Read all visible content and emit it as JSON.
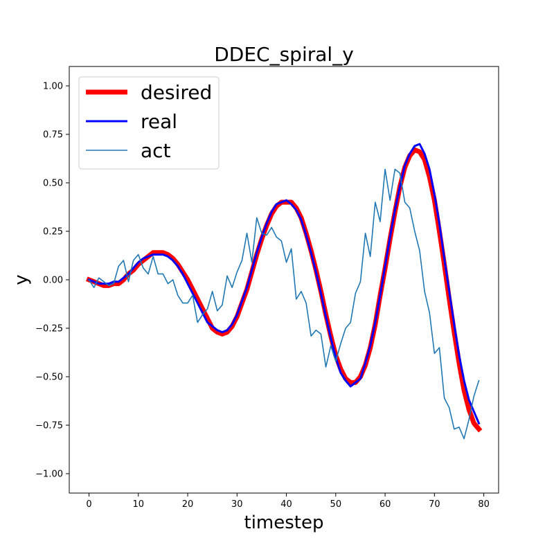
{
  "chart_data": {
    "type": "line",
    "title": "DDEC_spiral_y",
    "xlabel": "timestep",
    "ylabel": "y",
    "xlim": [
      -4,
      83
    ],
    "ylim": [
      -1.1,
      1.1
    ],
    "xticks": [
      0,
      10,
      20,
      30,
      40,
      50,
      60,
      70,
      80
    ],
    "yticks": [
      -1.0,
      -0.75,
      -0.5,
      -0.25,
      0.0,
      0.25,
      0.5,
      0.75,
      1.0
    ],
    "ytick_labels": [
      "−1.00",
      "−0.75",
      "−0.50",
      "−0.25",
      "0.00",
      "0.25",
      "0.50",
      "0.75",
      "1.00"
    ],
    "grid": false,
    "legend_position": "top-left",
    "series": [
      {
        "name": "desired",
        "color": "#ff0000",
        "x": [
          0,
          1,
          2,
          3,
          4,
          5,
          6,
          7,
          8,
          9,
          10,
          11,
          12,
          13,
          14,
          15,
          16,
          17,
          18,
          19,
          20,
          21,
          22,
          23,
          24,
          25,
          26,
          27,
          28,
          29,
          30,
          31,
          32,
          33,
          34,
          35,
          36,
          37,
          38,
          39,
          40,
          41,
          42,
          43,
          44,
          45,
          46,
          47,
          48,
          49,
          50,
          51,
          52,
          53,
          54,
          55,
          56,
          57,
          58,
          59,
          60,
          61,
          62,
          63,
          64,
          65,
          66,
          67,
          68,
          69,
          70,
          71,
          72,
          73,
          74,
          75,
          76,
          77,
          78,
          79
        ],
        "values": [
          0.0,
          -0.01,
          -0.02,
          -0.03,
          -0.03,
          -0.02,
          -0.02,
          0.0,
          0.03,
          0.05,
          0.08,
          0.1,
          0.12,
          0.14,
          0.14,
          0.14,
          0.13,
          0.11,
          0.08,
          0.04,
          0.0,
          -0.05,
          -0.1,
          -0.15,
          -0.2,
          -0.25,
          -0.27,
          -0.28,
          -0.27,
          -0.24,
          -0.19,
          -0.12,
          -0.05,
          0.04,
          0.13,
          0.21,
          0.28,
          0.34,
          0.38,
          0.4,
          0.4,
          0.4,
          0.37,
          0.32,
          0.24,
          0.15,
          0.05,
          -0.06,
          -0.18,
          -0.29,
          -0.39,
          -0.46,
          -0.51,
          -0.53,
          -0.53,
          -0.5,
          -0.44,
          -0.35,
          -0.23,
          -0.08,
          0.06,
          0.21,
          0.35,
          0.48,
          0.58,
          0.64,
          0.67,
          0.66,
          0.62,
          0.53,
          0.41,
          0.25,
          0.08,
          -0.1,
          -0.27,
          -0.43,
          -0.57,
          -0.67,
          -0.74,
          -0.77
        ]
      },
      {
        "name": "real",
        "color": "#0000ff",
        "x": [
          0,
          1,
          2,
          3,
          4,
          5,
          6,
          7,
          8,
          9,
          10,
          11,
          12,
          13,
          14,
          15,
          16,
          17,
          18,
          19,
          20,
          21,
          22,
          23,
          24,
          25,
          26,
          27,
          28,
          29,
          30,
          31,
          32,
          33,
          34,
          35,
          36,
          37,
          38,
          39,
          40,
          41,
          42,
          43,
          44,
          45,
          46,
          47,
          48,
          49,
          50,
          51,
          52,
          53,
          54,
          55,
          56,
          57,
          58,
          59,
          60,
          61,
          62,
          63,
          64,
          65,
          66,
          67,
          68,
          69,
          70,
          71,
          72,
          73,
          74,
          75,
          76,
          77,
          78,
          79
        ],
        "values": [
          0.0,
          -0.01,
          -0.02,
          -0.02,
          -0.02,
          -0.01,
          -0.01,
          0.01,
          0.03,
          0.06,
          0.09,
          0.11,
          0.12,
          0.13,
          0.13,
          0.13,
          0.12,
          0.1,
          0.07,
          0.03,
          -0.02,
          -0.07,
          -0.12,
          -0.17,
          -0.22,
          -0.24,
          -0.26,
          -0.27,
          -0.26,
          -0.23,
          -0.18,
          -0.11,
          -0.04,
          0.05,
          0.14,
          0.22,
          0.29,
          0.35,
          0.39,
          0.4,
          0.41,
          0.39,
          0.36,
          0.31,
          0.23,
          0.14,
          0.04,
          -0.07,
          -0.19,
          -0.3,
          -0.4,
          -0.48,
          -0.52,
          -0.55,
          -0.53,
          -0.51,
          -0.43,
          -0.34,
          -0.22,
          -0.08,
          0.07,
          0.22,
          0.36,
          0.48,
          0.59,
          0.65,
          0.69,
          0.7,
          0.65,
          0.57,
          0.44,
          0.29,
          0.11,
          -0.06,
          -0.23,
          -0.39,
          -0.52,
          -0.62,
          -0.68,
          -0.74
        ]
      },
      {
        "name": "act",
        "color": "#1f77b4",
        "x": [
          0,
          1,
          2,
          3,
          4,
          5,
          6,
          7,
          8,
          9,
          10,
          11,
          12,
          13,
          14,
          15,
          16,
          17,
          18,
          19,
          20,
          21,
          22,
          23,
          24,
          25,
          26,
          27,
          28,
          29,
          30,
          31,
          32,
          33,
          34,
          35,
          36,
          37,
          38,
          39,
          40,
          41,
          42,
          43,
          44,
          45,
          46,
          47,
          48,
          49,
          50,
          51,
          52,
          53,
          54,
          55,
          56,
          57,
          58,
          59,
          60,
          61,
          62,
          63,
          64,
          65,
          66,
          67,
          68,
          69,
          70,
          71,
          72,
          73,
          74,
          75,
          76,
          77,
          78,
          79
        ],
        "values": [
          0.0,
          -0.04,
          0.01,
          -0.01,
          -0.03,
          -0.02,
          0.07,
          0.1,
          -0.01,
          0.1,
          0.13,
          0.06,
          0.03,
          0.12,
          0.03,
          0.03,
          -0.02,
          0.0,
          -0.08,
          -0.12,
          -0.12,
          -0.08,
          -0.22,
          -0.18,
          -0.15,
          -0.06,
          -0.16,
          -0.13,
          0.02,
          -0.04,
          0.04,
          0.1,
          0.24,
          0.09,
          0.32,
          0.24,
          0.23,
          0.27,
          0.22,
          0.2,
          0.09,
          0.16,
          -0.1,
          -0.06,
          -0.12,
          -0.29,
          -0.26,
          -0.28,
          -0.45,
          -0.34,
          -0.42,
          -0.33,
          -0.25,
          -0.22,
          -0.07,
          -0.01,
          0.24,
          0.12,
          0.4,
          0.3,
          0.57,
          0.41,
          0.57,
          0.55,
          0.4,
          0.37,
          0.25,
          0.15,
          -0.06,
          -0.17,
          -0.38,
          -0.35,
          -0.61,
          -0.66,
          -0.77,
          -0.76,
          -0.82,
          -0.72,
          -0.6,
          -0.52
        ]
      }
    ]
  }
}
